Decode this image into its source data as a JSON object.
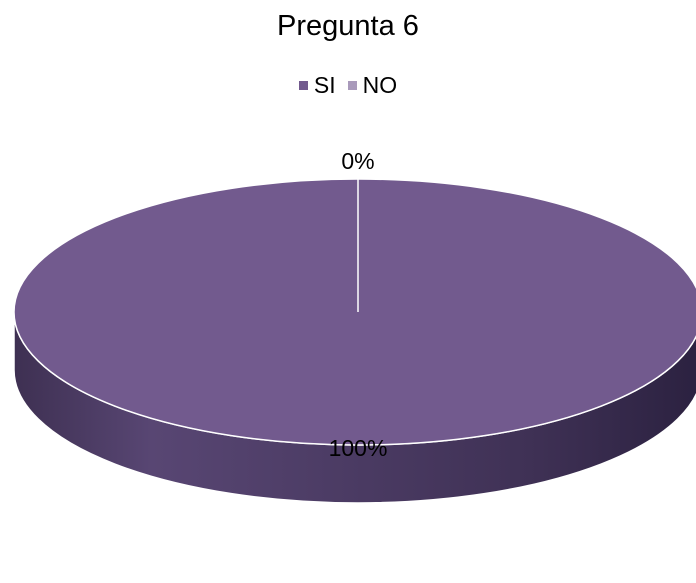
{
  "chart_data": {
    "type": "pie",
    "title": "Pregunta 6",
    "categories": [
      "SI",
      "NO"
    ],
    "values": [
      100,
      0
    ],
    "data_labels": [
      "100%",
      "0%"
    ],
    "colors": [
      "#725A8E",
      "#A99ABB"
    ],
    "side_color": "#4A3A60",
    "legend_position": "top",
    "style": "3d-pie"
  }
}
